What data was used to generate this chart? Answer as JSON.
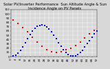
{
  "title": "Solar PV/Inverter Performance  Sun Altitude Angle & Sun Incidence Angle on PV Panels",
  "blue_x": [
    2,
    4,
    6,
    8,
    10,
    12,
    14,
    16,
    18,
    20,
    22,
    24,
    26,
    28,
    30,
    32,
    34,
    36,
    38,
    40,
    42,
    44,
    46,
    48,
    50,
    52,
    54,
    56,
    58,
    60,
    62,
    64,
    66,
    68,
    70,
    72
  ],
  "blue_y": [
    2,
    4,
    8,
    14,
    22,
    32,
    42,
    52,
    60,
    66,
    71,
    73,
    74,
    72,
    69,
    64,
    58,
    50,
    42,
    33,
    24,
    16,
    10,
    5,
    2,
    1,
    2,
    5,
    9,
    15,
    22,
    30,
    38,
    46,
    54,
    60
  ],
  "red_x": [
    2,
    6,
    10,
    14,
    18,
    22,
    26,
    30,
    34,
    38,
    42,
    46,
    50,
    54,
    58,
    62,
    66,
    70
  ],
  "red_y": [
    85,
    78,
    68,
    58,
    46,
    34,
    24,
    16,
    12,
    10,
    12,
    16,
    20,
    26,
    34,
    44,
    54,
    62
  ],
  "xlim_min": 0,
  "xlim_max": 72,
  "ylim_min": 0,
  "ylim_max": 110,
  "ytick_labels": [
    "0",
    "10",
    "20",
    "30",
    "40",
    "50",
    "60",
    "70",
    "80",
    "90",
    "100",
    "110"
  ],
  "ytick_vals": [
    0,
    10,
    20,
    30,
    40,
    50,
    60,
    70,
    80,
    90,
    100,
    110
  ],
  "xtick_vals": [
    0,
    4,
    8,
    12,
    16,
    20,
    24,
    28,
    32,
    36,
    40,
    44,
    48,
    52,
    56,
    60,
    64,
    68,
    72
  ],
  "xtick_labels": [
    "0",
    "4",
    "8",
    "12",
    "16",
    "20",
    "24",
    "28",
    "32",
    "36",
    "40",
    "44",
    "48",
    "52",
    "56",
    "60",
    "64",
    "68",
    "72"
  ],
  "bg_color": "#d8d8d8",
  "plot_bg": "#d8d8d8",
  "blue_color": "#0000dd",
  "red_color": "#dd0000",
  "grid_color": "#ffffff",
  "title_color": "#000000",
  "title_fontsize": 3.8,
  "tick_fontsize": 3.0,
  "dot_size": 1.2
}
